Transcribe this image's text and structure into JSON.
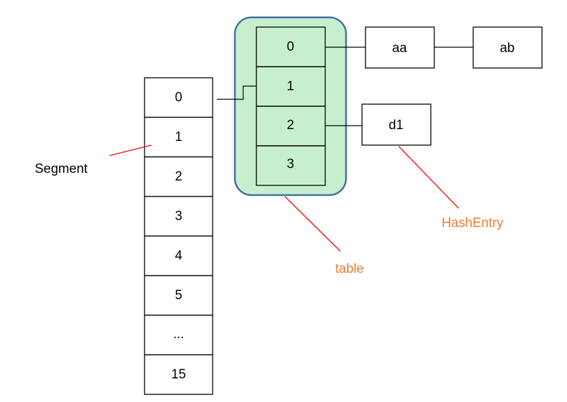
{
  "colors": {
    "table_fill": "#c6efce",
    "table_border": "#41719c",
    "pointer_line": "#ff0000",
    "orange_label": "#ed7d31",
    "black_label": "#000000"
  },
  "segment": {
    "label": "Segment",
    "cells": [
      "0",
      "1",
      "2",
      "3",
      "4",
      "5",
      "...",
      "15"
    ]
  },
  "table": {
    "label": "table",
    "cells": [
      "0",
      "1",
      "2",
      "3"
    ]
  },
  "hash_entries": {
    "label": "HashEntry",
    "chain_0": [
      "aa",
      "ab"
    ],
    "chain_2": [
      "d1"
    ]
  }
}
